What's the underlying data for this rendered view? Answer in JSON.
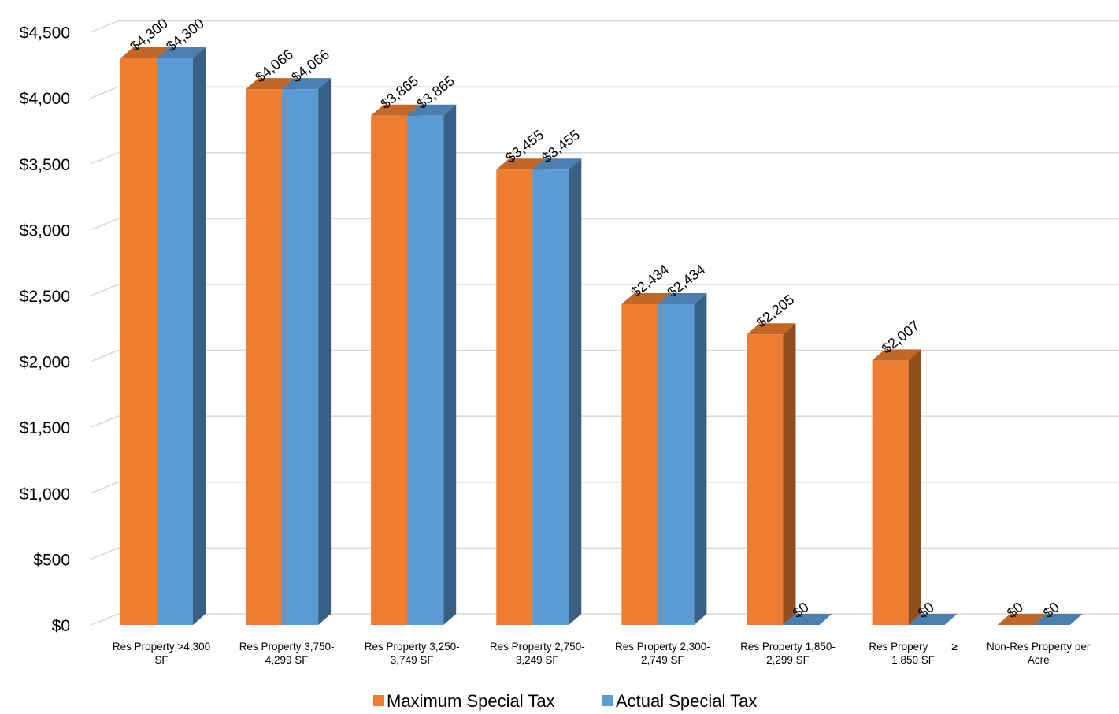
{
  "chart_data": {
    "type": "bar",
    "style": "3d-clustered",
    "categories": [
      [
        "Res Property >4,300",
        "SF"
      ],
      [
        "Res Property 3,750-",
        "4,299 SF"
      ],
      [
        "Res Property 3,250-",
        "3,749 SF"
      ],
      [
        "Res Property 2,750-",
        "3,249 SF"
      ],
      [
        "Res Property 2,300-",
        "2,749 SF"
      ],
      [
        "Res Property 1,850-",
        "2,299 SF"
      ],
      [
        "Res Propery        ≥",
        "1,850 SF"
      ],
      [
        "Non-Res Property per",
        "Acre"
      ]
    ],
    "series": [
      {
        "name": "Maximum Special Tax",
        "color": "#ED7D31",
        "values": [
          4300,
          4066,
          3865,
          3455,
          2434,
          2205,
          2007,
          0
        ],
        "labels": [
          "$4,300",
          "$4,066",
          "$3,865",
          "$3,455",
          "$2,434",
          "$2,205",
          "$2,007",
          "$0"
        ]
      },
      {
        "name": "Actual Special Tax",
        "color": "#5B9BD5",
        "values": [
          4300,
          4066,
          3865,
          3455,
          2434,
          0,
          0,
          0
        ],
        "labels": [
          "$4,300",
          "$4,066",
          "$3,865",
          "$3,455",
          "$2,434",
          "$0",
          "$0",
          "$0"
        ]
      }
    ],
    "ylim": [
      0,
      4500
    ],
    "yticks": [
      "$0",
      "$500",
      "$1,000",
      "$1,500",
      "$2,000",
      "$2,500",
      "$3,000",
      "$3,500",
      "$4,000",
      "$4,500"
    ],
    "grid": true,
    "legend_position": "bottom",
    "xlabel": "",
    "ylabel": "",
    "title": ""
  }
}
